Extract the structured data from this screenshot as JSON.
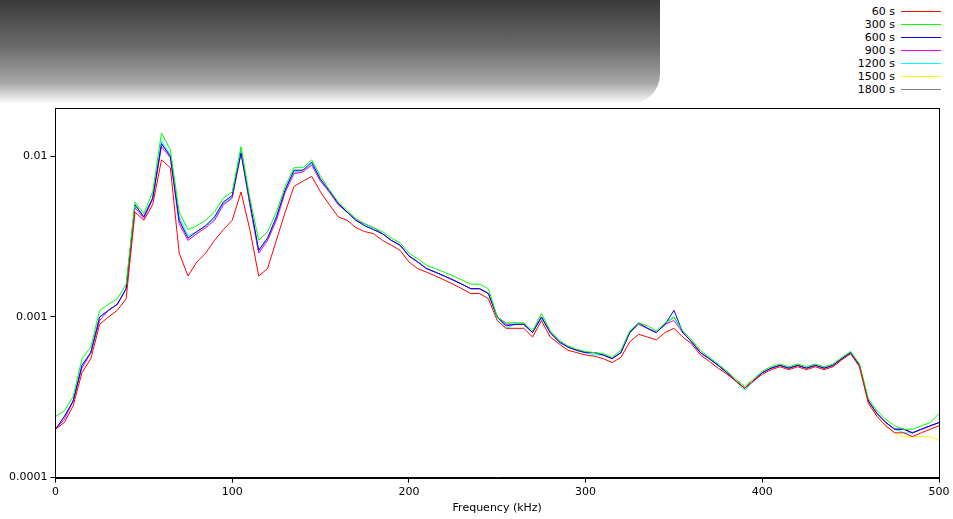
{
  "chart_data": {
    "type": "line",
    "log": "y",
    "grid": false,
    "legend": "upper right",
    "x_label": "Frequency (kHz)",
    "xlim": [
      0,
      500
    ],
    "xticks": [
      0,
      100,
      200,
      300,
      400,
      500
    ],
    "ylim": [
      0.0001,
      0.02
    ],
    "yticks": [
      0.0001,
      0.001,
      0.01
    ],
    "x": [
      0,
      5,
      10,
      15,
      20,
      25,
      30,
      35,
      40,
      45,
      50,
      55,
      60,
      65,
      70,
      75,
      80,
      85,
      90,
      95,
      100,
      105,
      110,
      115,
      120,
      125,
      130,
      135,
      140,
      145,
      150,
      155,
      160,
      165,
      170,
      175,
      180,
      185,
      190,
      195,
      200,
      205,
      210,
      215,
      220,
      225,
      230,
      235,
      240,
      245,
      250,
      255,
      260,
      265,
      270,
      275,
      280,
      285,
      290,
      295,
      300,
      305,
      310,
      315,
      320,
      325,
      330,
      335,
      340,
      345,
      350,
      355,
      360,
      365,
      370,
      375,
      380,
      385,
      390,
      395,
      400,
      405,
      410,
      415,
      420,
      425,
      430,
      435,
      440,
      445,
      450,
      455,
      460,
      465,
      470,
      475,
      480,
      485,
      490,
      495,
      500
    ],
    "series": [
      {
        "name": "60 s",
        "color": "#ff0000",
        "values": [
          0.0002,
          0.00022,
          0.00028,
          0.00045,
          0.00055,
          0.0009,
          0.001,
          0.0011,
          0.0013,
          0.0045,
          0.004,
          0.005,
          0.0095,
          0.0085,
          0.0025,
          0.0018,
          0.0022,
          0.0025,
          0.003,
          0.0035,
          0.004,
          0.006,
          0.0035,
          0.0018,
          0.002,
          0.003,
          0.0045,
          0.0065,
          0.007,
          0.0075,
          0.006,
          0.005,
          0.0042,
          0.004,
          0.0036,
          0.0034,
          0.0033,
          0.003,
          0.0028,
          0.0026,
          0.0022,
          0.002,
          0.0019,
          0.0018,
          0.0017,
          0.0016,
          0.0015,
          0.0014,
          0.0014,
          0.0013,
          0.00095,
          0.00085,
          0.00085,
          0.00085,
          0.00075,
          0.00095,
          0.00075,
          0.00068,
          0.00062,
          0.0006,
          0.00058,
          0.00057,
          0.00055,
          0.00052,
          0.00056,
          0.0007,
          0.00078,
          0.00075,
          0.00072,
          0.0008,
          0.00085,
          0.00075,
          0.00068,
          0.00058,
          0.00053,
          0.00048,
          0.00044,
          0.0004,
          0.00036,
          0.0004,
          0.00044,
          0.00047,
          0.00049,
          0.00047,
          0.00049,
          0.00047,
          0.00049,
          0.00047,
          0.00049,
          0.00054,
          0.00059,
          0.00049,
          0.00029,
          0.00024,
          0.00021,
          0.00019,
          0.00019,
          0.00018,
          0.00019,
          0.0002,
          0.00021
        ]
      },
      {
        "name": "300 s",
        "color": "#00ff00",
        "values": [
          0.00024,
          0.00026,
          0.00032,
          0.00055,
          0.00065,
          0.0011,
          0.0012,
          0.0013,
          0.0016,
          0.0052,
          0.0044,
          0.006,
          0.014,
          0.011,
          0.0045,
          0.0035,
          0.0037,
          0.004,
          0.0045,
          0.0055,
          0.006,
          0.0115,
          0.0055,
          0.003,
          0.0034,
          0.0045,
          0.0065,
          0.0085,
          0.0085,
          0.0095,
          0.0075,
          0.0062,
          0.0052,
          0.0046,
          0.0041,
          0.0038,
          0.0036,
          0.0034,
          0.0031,
          0.0029,
          0.0025,
          0.0023,
          0.0021,
          0.002,
          0.0019,
          0.0018,
          0.0017,
          0.0016,
          0.0016,
          0.0015,
          0.001,
          0.00092,
          0.00092,
          0.00092,
          0.00082,
          0.00105,
          0.00082,
          0.00072,
          0.00066,
          0.00063,
          0.00061,
          0.0006,
          0.00059,
          0.00056,
          0.00062,
          0.00082,
          0.00092,
          0.00088,
          0.00082,
          0.00092,
          0.001,
          0.00082,
          0.00072,
          0.00062,
          0.00056,
          0.00051,
          0.00046,
          0.00041,
          0.00037,
          0.00041,
          0.00046,
          0.00049,
          0.00051,
          0.00049,
          0.00051,
          0.00049,
          0.00051,
          0.00049,
          0.00051,
          0.00056,
          0.00061,
          0.00051,
          0.00031,
          0.00026,
          0.00023,
          0.00021,
          0.0002,
          0.0002,
          0.00021,
          0.00022,
          0.00025
        ]
      },
      {
        "name": "600 s",
        "color": "#0000ff",
        "values": [
          0.0002,
          0.00024,
          0.0003,
          0.0005,
          0.0006,
          0.001,
          0.0011,
          0.0012,
          0.0015,
          0.005,
          0.0042,
          0.0055,
          0.012,
          0.01,
          0.004,
          0.0031,
          0.0034,
          0.0037,
          0.0042,
          0.0052,
          0.0057,
          0.0105,
          0.0052,
          0.0026,
          0.0031,
          0.0042,
          0.0062,
          0.0082,
          0.0082,
          0.0092,
          0.0072,
          0.0061,
          0.0051,
          0.0045,
          0.004,
          0.0037,
          0.0035,
          0.0033,
          0.003,
          0.0028,
          0.0024,
          0.0022,
          0.002,
          0.0019,
          0.0018,
          0.0017,
          0.0016,
          0.0015,
          0.0015,
          0.0014,
          0.001,
          0.00088,
          0.0009,
          0.0009,
          0.0008,
          0.001,
          0.0008,
          0.0007,
          0.00065,
          0.00062,
          0.0006,
          0.0006,
          0.00058,
          0.00055,
          0.0006,
          0.0008,
          0.00092,
          0.00085,
          0.0008,
          0.0009,
          0.0011,
          0.0008,
          0.0007,
          0.0006,
          0.00055,
          0.0005,
          0.00045,
          0.0004,
          0.00036,
          0.0004,
          0.00045,
          0.00048,
          0.0005,
          0.00048,
          0.0005,
          0.00048,
          0.0005,
          0.00048,
          0.0005,
          0.00055,
          0.0006,
          0.0005,
          0.0003,
          0.00025,
          0.00022,
          0.0002,
          0.0002,
          0.00019,
          0.0002,
          0.00021,
          0.00022
        ]
      },
      {
        "name": "900 s",
        "color": "#ff00ff",
        "values": [
          0.0002,
          0.00023,
          0.0003,
          0.00048,
          0.0006,
          0.00095,
          0.0011,
          0.0012,
          0.0015,
          0.0048,
          0.0041,
          0.0054,
          0.0115,
          0.0098,
          0.0038,
          0.003,
          0.0033,
          0.0036,
          0.004,
          0.005,
          0.0055,
          0.0105,
          0.005,
          0.0025,
          0.003,
          0.004,
          0.006,
          0.0078,
          0.008,
          0.0088,
          0.007,
          0.006,
          0.005,
          0.0045,
          0.004,
          0.0038,
          0.0036,
          0.0033,
          0.003,
          0.0028,
          0.0024,
          0.0022,
          0.002,
          0.0019,
          0.0018,
          0.0017,
          0.0016,
          0.0015,
          0.0015,
          0.0014,
          0.001,
          0.0009,
          0.0009,
          0.0009,
          0.0008,
          0.001,
          0.0008,
          0.0007,
          0.00065,
          0.00062,
          0.0006,
          0.0006,
          0.00058,
          0.00055,
          0.0006,
          0.0008,
          0.0009,
          0.00085,
          0.0008,
          0.0009,
          0.00095,
          0.0008,
          0.0007,
          0.0006,
          0.00055,
          0.0005,
          0.00045,
          0.0004,
          0.00036,
          0.0004,
          0.00045,
          0.00048,
          0.0005,
          0.00048,
          0.0005,
          0.00048,
          0.0005,
          0.00048,
          0.0005,
          0.00055,
          0.0006,
          0.0005,
          0.0003,
          0.00025,
          0.00022,
          0.0002,
          0.0002,
          0.00019,
          0.0002,
          0.00021,
          0.00022
        ]
      },
      {
        "name": "1200 s",
        "color": "#00ffff",
        "values": [
          0.0002,
          0.00024,
          0.0003,
          0.0005,
          0.0006,
          0.001,
          0.0011,
          0.0012,
          0.0015,
          0.005,
          0.0042,
          0.0055,
          0.0125,
          0.0102,
          0.0042,
          0.0032,
          0.0034,
          0.0037,
          0.0041,
          0.0051,
          0.0056,
          0.0108,
          0.0051,
          0.0026,
          0.0031,
          0.0041,
          0.0061,
          0.008,
          0.0082,
          0.009,
          0.0071,
          0.006,
          0.005,
          0.0045,
          0.004,
          0.0037,
          0.0035,
          0.0033,
          0.003,
          0.0028,
          0.0024,
          0.0022,
          0.002,
          0.0019,
          0.0018,
          0.0017,
          0.0016,
          0.0015,
          0.0015,
          0.0014,
          0.001,
          0.00085,
          0.0009,
          0.0009,
          0.0008,
          0.00098,
          0.0008,
          0.0007,
          0.00065,
          0.00062,
          0.0006,
          0.00058,
          0.00058,
          0.00055,
          0.0006,
          0.0008,
          0.0009,
          0.00085,
          0.0008,
          0.0009,
          0.001,
          0.0008,
          0.0007,
          0.0006,
          0.00055,
          0.0005,
          0.00045,
          0.0004,
          0.00035,
          0.0004,
          0.00045,
          0.00048,
          0.0005,
          0.00048,
          0.0005,
          0.00048,
          0.0005,
          0.00048,
          0.0005,
          0.00055,
          0.0006,
          0.0005,
          0.0003,
          0.00025,
          0.00022,
          0.0002,
          0.00019,
          0.00019,
          0.0002,
          0.00021,
          0.00022
        ]
      },
      {
        "name": "1500 s",
        "color": "#ffff00",
        "values": [
          0.0002,
          0.00024,
          0.0003,
          0.0005,
          0.0006,
          0.001,
          0.0011,
          0.0012,
          0.0015,
          0.005,
          0.0042,
          0.0055,
          0.0118,
          0.01,
          0.004,
          0.003,
          0.0033,
          0.0036,
          0.004,
          0.005,
          0.0055,
          0.0106,
          0.005,
          0.0025,
          0.003,
          0.004,
          0.006,
          0.008,
          0.008,
          0.009,
          0.007,
          0.006,
          0.005,
          0.0045,
          0.004,
          0.0037,
          0.0035,
          0.0033,
          0.003,
          0.0028,
          0.0024,
          0.0022,
          0.002,
          0.0019,
          0.0018,
          0.0017,
          0.0016,
          0.0015,
          0.0015,
          0.0014,
          0.001,
          0.0009,
          0.0009,
          0.0009,
          0.0008,
          0.001,
          0.0008,
          0.0007,
          0.00065,
          0.00062,
          0.0006,
          0.0006,
          0.00058,
          0.00055,
          0.0006,
          0.0008,
          0.0009,
          0.00085,
          0.0008,
          0.0009,
          0.001,
          0.0008,
          0.0007,
          0.0006,
          0.00055,
          0.0005,
          0.00045,
          0.0004,
          0.00035,
          0.0004,
          0.00045,
          0.00048,
          0.0005,
          0.00048,
          0.0005,
          0.00048,
          0.0005,
          0.00048,
          0.0005,
          0.00055,
          0.0006,
          0.0005,
          0.0003,
          0.00024,
          0.00021,
          0.00019,
          0.00018,
          0.00018,
          0.00018,
          0.00018,
          0.00017
        ]
      },
      {
        "name": "1800 s",
        "color": "#808080",
        "values": [
          0.0002,
          0.00024,
          0.0003,
          0.0005,
          0.0006,
          0.001,
          0.0011,
          0.0012,
          0.0015,
          0.005,
          0.0042,
          0.0055,
          0.012,
          0.01,
          0.004,
          0.003,
          0.0033,
          0.0036,
          0.004,
          0.005,
          0.0055,
          0.011,
          0.005,
          0.0025,
          0.003,
          0.004,
          0.006,
          0.008,
          0.008,
          0.009,
          0.007,
          0.006,
          0.005,
          0.0045,
          0.004,
          0.0037,
          0.0035,
          0.0033,
          0.003,
          0.0028,
          0.0024,
          0.0022,
          0.002,
          0.0019,
          0.0018,
          0.0017,
          0.0016,
          0.0015,
          0.0015,
          0.0014,
          0.001,
          0.0009,
          0.0009,
          0.0009,
          0.0008,
          0.001,
          0.0008,
          0.0007,
          0.00065,
          0.00062,
          0.0006,
          0.0006,
          0.00058,
          0.00055,
          0.0006,
          0.0008,
          0.0009,
          0.00085,
          0.0008,
          0.0009,
          0.001,
          0.0008,
          0.0007,
          0.0006,
          0.00055,
          0.0005,
          0.00045,
          0.0004,
          0.00036,
          0.0004,
          0.00045,
          0.00048,
          0.0005,
          0.00048,
          0.0005,
          0.00048,
          0.0005,
          0.00048,
          0.0005,
          0.00055,
          0.0006,
          0.0005,
          0.0003,
          0.00025,
          0.00022,
          0.0002,
          0.0002,
          0.00019,
          0.0002,
          0.00021,
          0.00022
        ]
      }
    ]
  }
}
